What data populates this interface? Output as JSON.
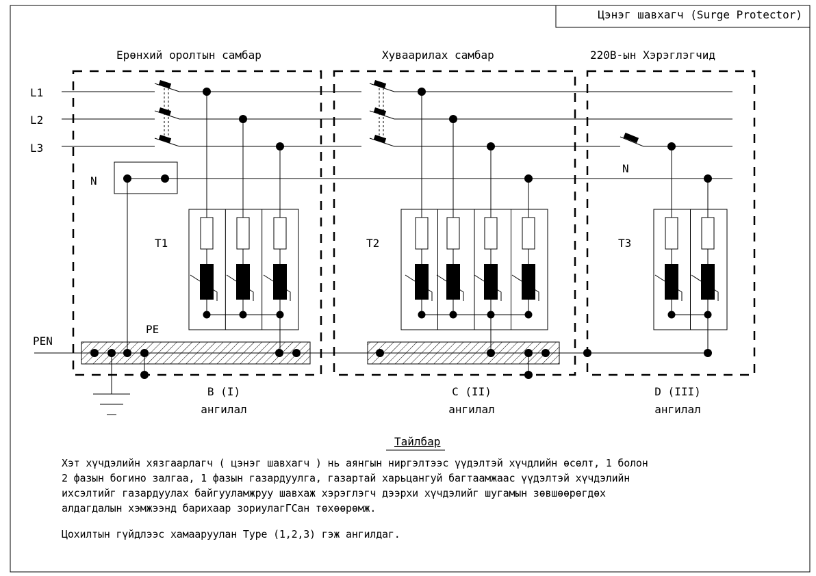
{
  "header": {
    "title": "Цэнэг шавхагч (Surge Protector)"
  },
  "panels": {
    "main": {
      "title": "Ерөнхий оролтын самбар",
      "category": "B (I)",
      "category_word": "ангилал",
      "device": "T1"
    },
    "distribution": {
      "title": "Хуваарилах самбар",
      "category": "C (II)",
      "category_word": "ангилал",
      "device": "T2"
    },
    "consumer": {
      "title": "220В-ын Хэрэглэгчид",
      "category": "D (III)",
      "category_word": "ангилал",
      "device": "T3"
    }
  },
  "lines": {
    "l1": "L1",
    "l2": "L2",
    "l3": "L3",
    "n": "N",
    "n_consumer": "N",
    "pen": "PEN",
    "pe": "PE"
  },
  "note": {
    "title": "Тайлбар",
    "lines": [
      "Хэт хүчдэлийн хязгаарлагч ( цэнэг шавхагч )  нь аянгын ниргэлтээс үүдэлтэй хүчдлийн өсөлт, 1 болон",
      "2 фазын богино залгаа, 1 фазын газардуулга, газартай харьцангуй багтаамжаас үүдэлтэй хүчдэлийн",
      "ихсэлтийг газардуулах байгууламжруу шавхаж хэрэглэгч дээрхи хүчдэлийг шугамын зөвшөөрөгдөх",
      "алдагдалын хэмжээнд барихаар зориулагГСан төхөөрөмж."
    ],
    "footer": "Цохилтын гүйдлээс хамааруулан Type (1,2,3) гэж ангилдаг."
  }
}
